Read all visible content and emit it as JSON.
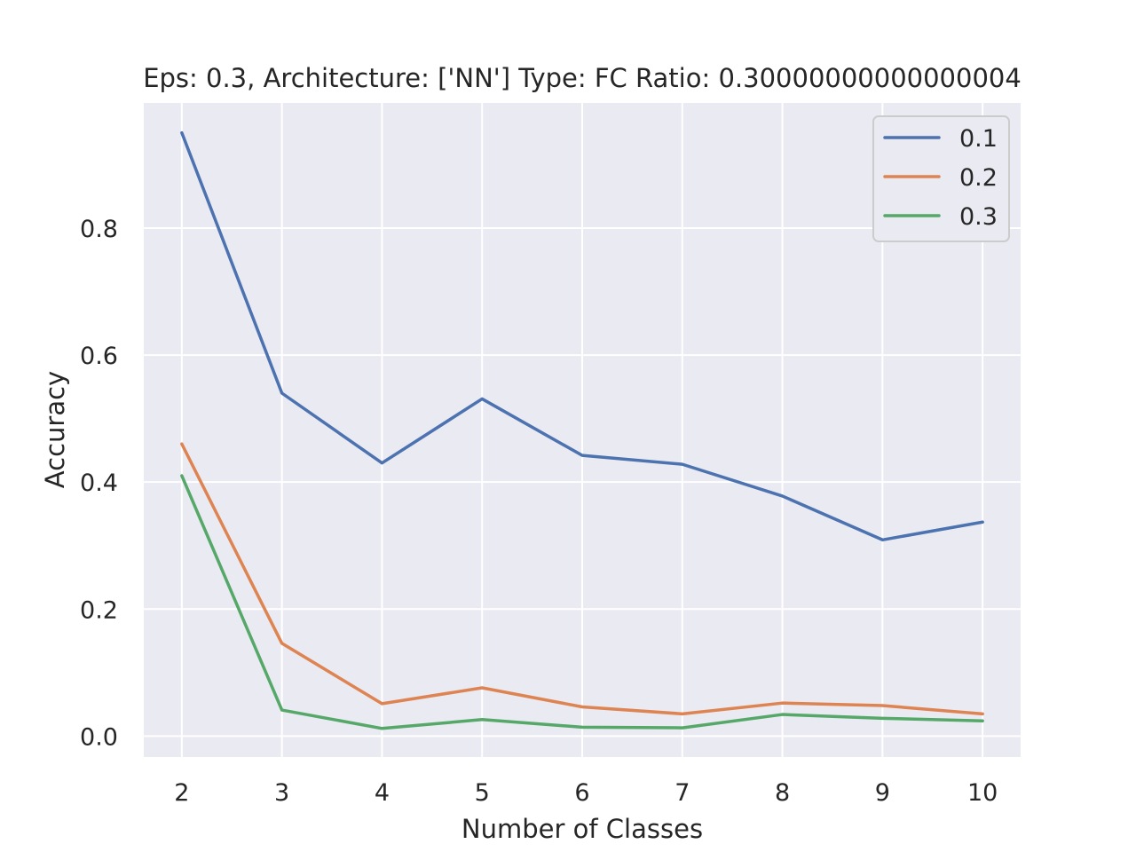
{
  "chart_data": {
    "type": "line",
    "title": "Eps: 0.3, Architecture: ['NN'] Type: FC Ratio: 0.30000000000000004",
    "xlabel": "Number of Classes",
    "ylabel": "Accuracy",
    "x": [
      2,
      3,
      4,
      5,
      6,
      7,
      8,
      9,
      10
    ],
    "x_tick_labels": [
      "2",
      "3",
      "4",
      "5",
      "6",
      "7",
      "8",
      "9",
      "10"
    ],
    "y_ticks": [
      0.0,
      0.2,
      0.4,
      0.6,
      0.8
    ],
    "y_tick_labels": [
      "0.0",
      "0.2",
      "0.4",
      "0.6",
      "0.8"
    ],
    "xlim": [
      1.62,
      10.38
    ],
    "ylim": [
      -0.033,
      0.997
    ],
    "grid": true,
    "legend": "upper right",
    "series": [
      {
        "name": "0.1",
        "color": "#4c72b0",
        "values": [
          0.95,
          0.54,
          0.43,
          0.531,
          0.442,
          0.428,
          0.378,
          0.309,
          0.337
        ]
      },
      {
        "name": "0.2",
        "color": "#dd8452",
        "values": [
          0.46,
          0.146,
          0.051,
          0.076,
          0.046,
          0.035,
          0.052,
          0.048,
          0.035
        ]
      },
      {
        "name": "0.3",
        "color": "#55a868",
        "values": [
          0.41,
          0.041,
          0.012,
          0.026,
          0.014,
          0.013,
          0.034,
          0.028,
          0.024
        ]
      }
    ]
  }
}
